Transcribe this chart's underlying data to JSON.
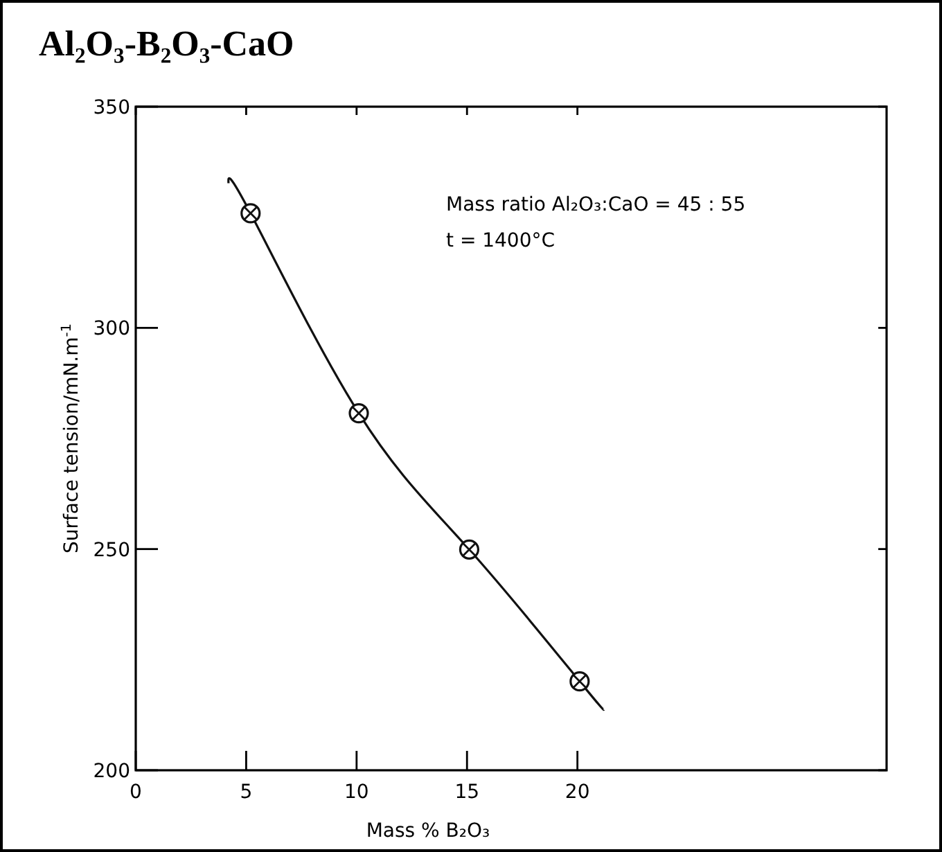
{
  "chart_data": {
    "type": "scatter",
    "title": "Al₂O₃-B₂O₃-CaO",
    "xlabel": "Mass % B₂O₃",
    "ylabel": "Surface tension/mN.m$^{-1}$",
    "annotations": [
      "Mass ratio Al₂O₃:CaO = 45 : 55",
      "t = 1400°C"
    ],
    "xlim": [
      0,
      34
    ],
    "xticks": [
      0,
      5,
      10,
      15,
      20
    ],
    "ylim": [
      200,
      350
    ],
    "yticks": [
      200,
      250,
      300,
      350
    ],
    "grid": false,
    "series": [
      {
        "type": "line",
        "color": "#111111",
        "line_style": "solid",
        "x": [
          4.2,
          5.2,
          10.1,
          15.1,
          20.1,
          21.2
        ],
        "values": [
          332.7,
          325.9,
          280.7,
          249.9,
          220.1,
          213.7
        ]
      },
      {
        "color": "#111111",
        "marker": "circle",
        "x": [
          5.2,
          10.1,
          15.1,
          20.1
        ],
        "values": [
          325.9,
          280.7,
          249.9,
          220.1
        ]
      }
    ]
  }
}
